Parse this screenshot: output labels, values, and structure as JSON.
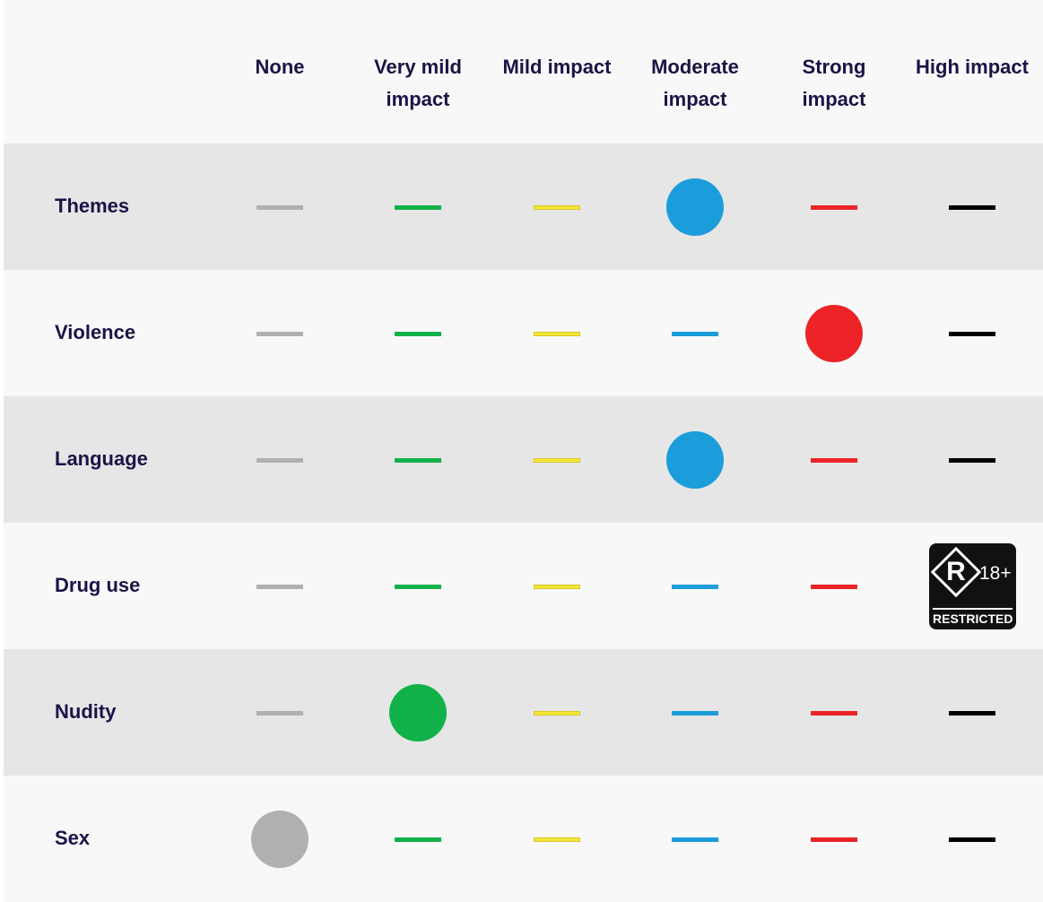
{
  "columns": [
    {
      "label": "None",
      "color": "#b0b0b0"
    },
    {
      "label": "Very mild impact",
      "color": "#12b24a"
    },
    {
      "label": "Mild impact",
      "color": "#f5e63a"
    },
    {
      "label": "Moderate impact",
      "color": "#1b9ddb"
    },
    {
      "label": "Strong impact",
      "color": "#ec2327"
    },
    {
      "label": "High impact",
      "color": "#000000"
    }
  ],
  "rows": [
    {
      "label": "Themes",
      "rating": "Moderate impact"
    },
    {
      "label": "Violence",
      "rating": "Strong impact"
    },
    {
      "label": "Language",
      "rating": "Moderate impact"
    },
    {
      "label": "Drug use",
      "rating": "High impact",
      "badge": {
        "letter": "R",
        "age": "18+",
        "label": "RESTRICTED"
      }
    },
    {
      "label": "Nudity",
      "rating": "Very mild impact"
    },
    {
      "label": "Sex",
      "rating": "None"
    }
  ]
}
